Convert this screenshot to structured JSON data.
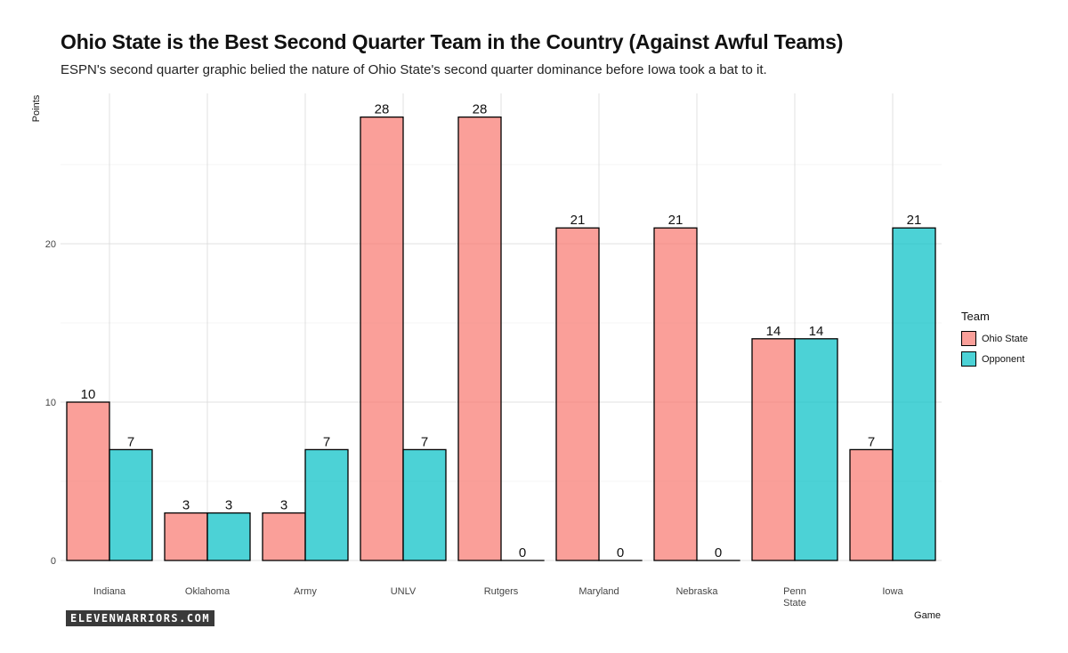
{
  "chart_data": {
    "type": "bar",
    "title": "Ohio State is the Best Second Quarter Team in the Country (Against Awful Teams)",
    "subtitle": "ESPN's second quarter graphic belied the nature of Ohio State's second quarter dominance before Iowa took a bat to it.",
    "xlabel": "Game",
    "ylabel": "Points",
    "categories": [
      [
        "Indiana"
      ],
      [
        "Oklahoma"
      ],
      [
        "Army"
      ],
      [
        "UNLV"
      ],
      [
        "Rutgers"
      ],
      [
        "Maryland"
      ],
      [
        "Nebraska"
      ],
      [
        "Penn",
        "State"
      ],
      [
        "Iowa"
      ]
    ],
    "series": [
      {
        "name": "Ohio State",
        "color": "#F8766D",
        "values": [
          10,
          3,
          3,
          28,
          28,
          21,
          21,
          14,
          7
        ]
      },
      {
        "name": "Opponent",
        "color": "#00BFC4",
        "values": [
          7,
          3,
          7,
          7,
          0,
          0,
          0,
          14,
          21
        ]
      }
    ],
    "ylim": [
      0,
      30
    ],
    "yticks": [
      0,
      10,
      20
    ],
    "legend": {
      "title": "Team",
      "placement": "right"
    },
    "grid": true
  },
  "watermark": "ELEVENWARRIORS.COM"
}
